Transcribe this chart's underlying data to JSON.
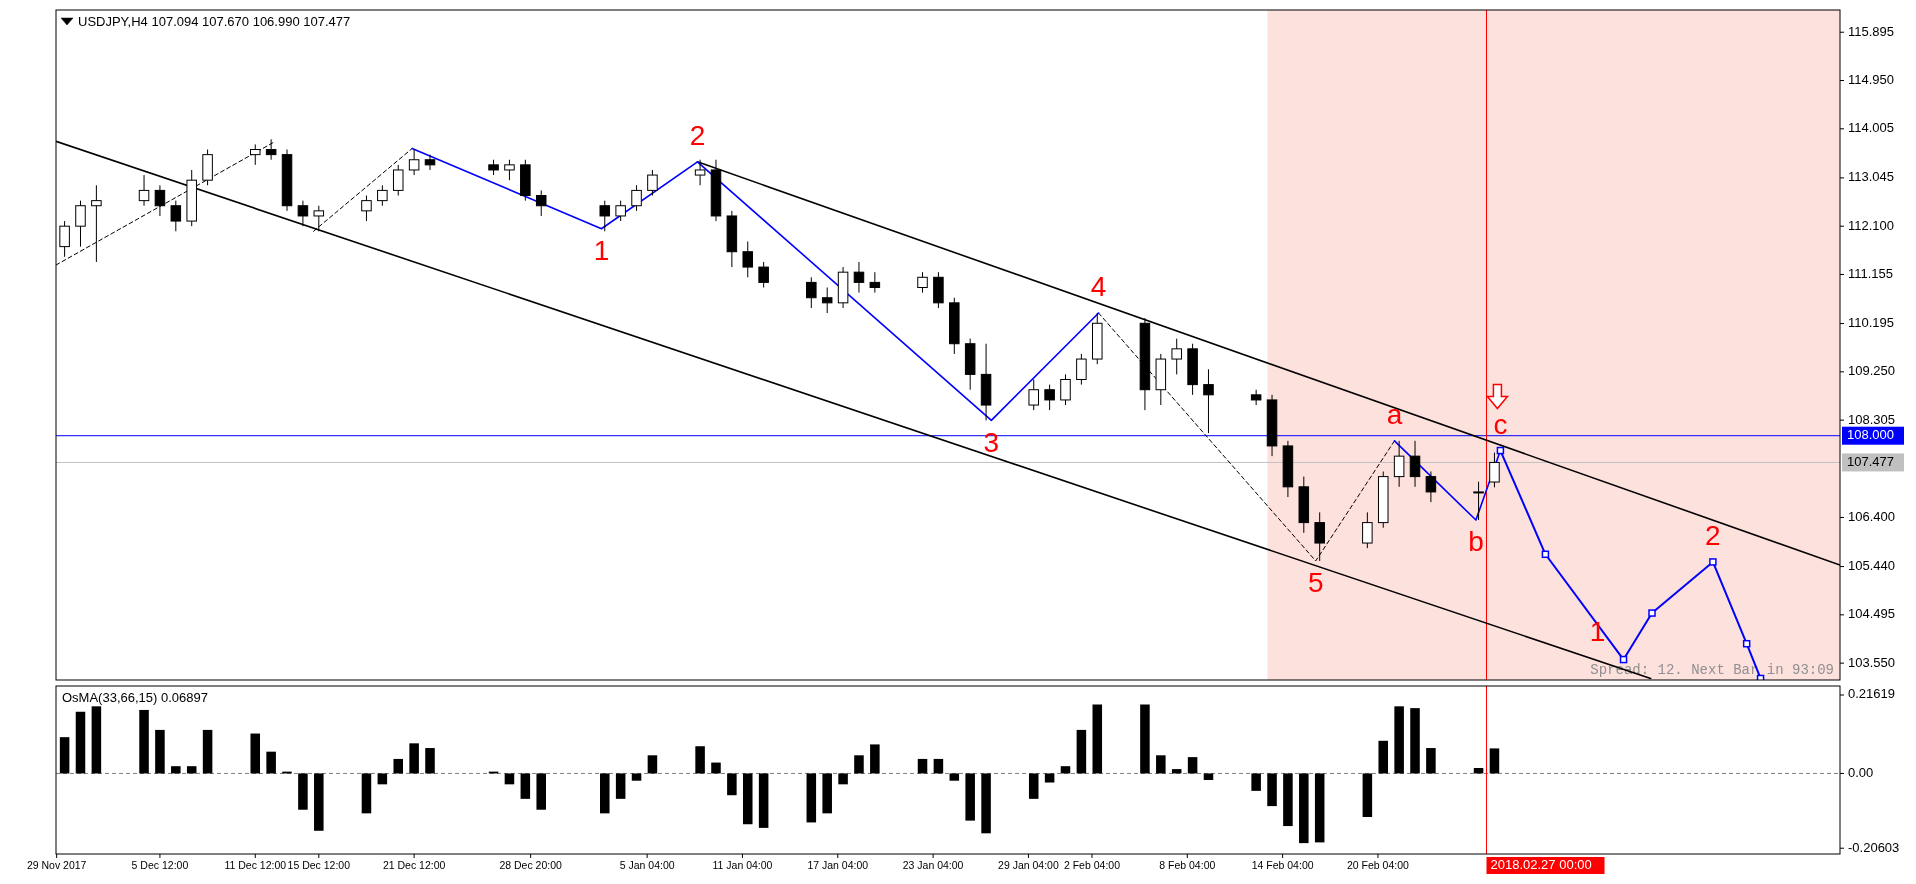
{
  "chart_data": [
    {
      "type": "candlestick",
      "title": "USDJPY,H4 107.094 107.670 106.990 107.477",
      "xlim": [
        "2017-11-28T23:00",
        "2018-03-21T06:00"
      ],
      "ylim": [
        103.22,
        116.33
      ],
      "yticks": [
        115.895,
        {
          "value": 114.95,
          "label": "114.950"
        },
        114.005,
        113.045,
        {
          "value": 112.1,
          "label": "112.100"
        },
        111.155,
        110.195,
        {
          "value": 109.25,
          "label": "109.250"
        },
        108.305,
        {
          "value": 106.4,
          "label": "106.400"
        },
        {
          "value": 105.44,
          "label": "105.440"
        },
        104.495,
        {
          "value": 103.55,
          "label": "103.550"
        }
      ],
      "tick_labels": "y",
      "series": [
        {
          "type": "line",
          "color": "#000000",
          "x": [
            "2017-11-28T23:00",
            "2018-03-09T08:00"
          ],
          "values": [
            113.76,
            103.25
          ]
        },
        {
          "type": "line",
          "color": "#000000",
          "x": [
            "2018-01-08T08:00",
            "2018-03-21T06:00"
          ],
          "values": [
            113.36,
            105.47
          ]
        },
        {
          "type": "line",
          "color": "#000000",
          "line_style": "dashed",
          "x": [
            "2017-11-28T23:00",
            "2017-12-12T17:00"
          ],
          "values": [
            111.34,
            113.75
          ]
        },
        {
          "type": "line",
          "color": "#000000",
          "line_style": "dashed",
          "x": [
            "2017-12-15T04:00",
            "2017-12-21T09:00"
          ],
          "values": [
            112.0,
            113.62
          ]
        },
        {
          "type": "line",
          "color": "#000000",
          "line_style": "dashed",
          "x": [
            "2018-02-02T14:00",
            "2018-02-16T06:00",
            "2018-02-21T05:00"
          ],
          "values": [
            110.4,
            105.55,
            107.9
          ]
        },
        {
          "type": "line",
          "color": "#0000ff",
          "x": [
            "2017-12-21T09:00",
            "2018-01-02T07:00",
            "2018-01-08T08:00",
            "2018-01-26T20:00",
            "2018-02-02T14:00"
          ],
          "values": [
            113.62,
            112.05,
            113.36,
            108.3,
            110.4
          ]
        },
        {
          "type": "line",
          "color": "#0000ff",
          "x": [
            "2018-02-21T05:00",
            "2018-02-26T08:00",
            "2018-02-27T21:00"
          ],
          "values": [
            107.9,
            106.35,
            107.71
          ]
        },
        {
          "type": "line",
          "color": "#0000ff",
          "marker": "square",
          "x": [
            "2018-02-27T21:00",
            "2018-03-02T17:00",
            "2018-03-07T15:00",
            "2018-03-09T10:00",
            "2018-03-13T06:00",
            "2018-03-15T09:00",
            "2018-03-16T06:00"
          ],
          "values": [
            107.71,
            105.68,
            103.62,
            104.53,
            105.53,
            103.93,
            103.25
          ]
        }
      ],
      "color": "#000000",
      "x": [
        "2017-11-29T12:00",
        "2017-11-30T12:00",
        "2017-12-01T12:00",
        "2017-12-04T12:00",
        "2017-12-05T12:00",
        "2017-12-06T12:00",
        "2017-12-07T12:00",
        "2017-12-08T12:00",
        "2017-12-11T12:00",
        "2017-12-12T12:00",
        "2017-12-13T12:00",
        "2017-12-14T12:00",
        "2017-12-15T12:00",
        "2017-12-18T12:00",
        "2017-12-19T12:00",
        "2017-12-20T12:00",
        "2017-12-21T12:00",
        "2017-12-22T12:00",
        "2017-12-26T12:00",
        "2017-12-27T12:00",
        "2017-12-28T12:00",
        "2017-12-29T12:00",
        "2018-01-02T12:00",
        "2018-01-03T12:00",
        "2018-01-04T12:00",
        "2018-01-05T12:00",
        "2018-01-08T12:00",
        "2018-01-09T12:00",
        "2018-01-10T12:00",
        "2018-01-11T12:00",
        "2018-01-12T12:00",
        "2018-01-15T12:00",
        "2018-01-16T12:00",
        "2018-01-17T12:00",
        "2018-01-18T12:00",
        "2018-01-19T12:00",
        "2018-01-22T12:00",
        "2018-01-23T12:00",
        "2018-01-24T12:00",
        "2018-01-25T12:00",
        "2018-01-26T12:00",
        "2018-01-29T12:00",
        "2018-01-30T12:00",
        "2018-01-31T12:00",
        "2018-02-01T12:00",
        "2018-02-02T12:00",
        "2018-02-05T12:00",
        "2018-02-06T12:00",
        "2018-02-07T12:00",
        "2018-02-08T12:00",
        "2018-02-09T12:00",
        "2018-02-12T12:00",
        "2018-02-13T12:00",
        "2018-02-14T12:00",
        "2018-02-15T12:00",
        "2018-02-16T12:00",
        "2018-02-19T12:00",
        "2018-02-20T12:00",
        "2018-02-21T12:00",
        "2018-02-22T12:00",
        "2018-02-23T12:00",
        "2018-02-26T12:00",
        "2018-02-27T12:00"
      ],
      "ohlc": [
        [
          111.7,
          112.2,
          111.5,
          112.1
        ],
        [
          112.1,
          112.6,
          111.7,
          112.5
        ],
        [
          112.5,
          112.9,
          111.4,
          112.6
        ],
        [
          112.6,
          113.1,
          112.5,
          112.8
        ],
        [
          112.8,
          112.9,
          112.3,
          112.5
        ],
        [
          112.5,
          112.6,
          112.0,
          112.2
        ],
        [
          112.2,
          113.2,
          112.1,
          113.0
        ],
        [
          113.0,
          113.6,
          112.9,
          113.5
        ],
        [
          113.5,
          113.7,
          113.3,
          113.6
        ],
        [
          113.6,
          113.8,
          113.4,
          113.5
        ],
        [
          113.5,
          113.6,
          112.4,
          112.5
        ],
        [
          112.5,
          112.6,
          112.1,
          112.3
        ],
        [
          112.3,
          112.5,
          112.0,
          112.4
        ],
        [
          112.4,
          112.7,
          112.2,
          112.6
        ],
        [
          112.6,
          112.9,
          112.5,
          112.8
        ],
        [
          112.8,
          113.3,
          112.7,
          113.2
        ],
        [
          113.2,
          113.6,
          113.1,
          113.4
        ],
        [
          113.4,
          113.5,
          113.2,
          113.3
        ],
        [
          113.3,
          113.4,
          113.1,
          113.2
        ],
        [
          113.2,
          113.4,
          113.0,
          113.3
        ],
        [
          113.3,
          113.4,
          112.6,
          112.7
        ],
        [
          112.7,
          112.8,
          112.3,
          112.5
        ],
        [
          112.5,
          112.6,
          112.0,
          112.3
        ],
        [
          112.3,
          112.6,
          112.2,
          112.5
        ],
        [
          112.5,
          112.9,
          112.4,
          112.8
        ],
        [
          112.8,
          113.2,
          112.7,
          113.1
        ],
        [
          113.1,
          113.4,
          112.9,
          113.2
        ],
        [
          113.2,
          113.4,
          112.2,
          112.3
        ],
        [
          112.3,
          112.4,
          111.3,
          111.6
        ],
        [
          111.6,
          111.8,
          111.1,
          111.3
        ],
        [
          111.3,
          111.4,
          110.9,
          111.0
        ],
        [
          111.0,
          111.1,
          110.5,
          110.7
        ],
        [
          110.7,
          110.9,
          110.4,
          110.6
        ],
        [
          110.6,
          111.3,
          110.5,
          111.2
        ],
        [
          111.2,
          111.4,
          110.8,
          111.0
        ],
        [
          111.0,
          111.2,
          110.8,
          110.9
        ],
        [
          110.9,
          111.2,
          110.8,
          111.1
        ],
        [
          111.1,
          111.2,
          110.5,
          110.6
        ],
        [
          110.6,
          110.7,
          109.6,
          109.8
        ],
        [
          109.8,
          109.9,
          108.9,
          109.2
        ],
        [
          109.2,
          109.8,
          108.3,
          108.6
        ],
        [
          108.6,
          109.1,
          108.5,
          108.9
        ],
        [
          108.9,
          109.0,
          108.5,
          108.7
        ],
        [
          108.7,
          109.2,
          108.6,
          109.1
        ],
        [
          109.1,
          109.6,
          109.0,
          109.5
        ],
        [
          109.5,
          110.4,
          109.4,
          110.2
        ],
        [
          110.2,
          110.3,
          108.5,
          108.9
        ],
        [
          108.9,
          109.6,
          108.6,
          109.5
        ],
        [
          109.5,
          109.9,
          109.2,
          109.7
        ],
        [
          109.7,
          109.8,
          108.8,
          109.0
        ],
        [
          109.0,
          109.3,
          108.05,
          108.8
        ],
        [
          108.8,
          108.9,
          108.6,
          108.7
        ],
        [
          108.7,
          108.8,
          107.6,
          107.8
        ],
        [
          107.8,
          107.9,
          106.8,
          107.0
        ],
        [
          107.0,
          107.2,
          106.1,
          106.3
        ],
        [
          106.3,
          106.5,
          105.55,
          105.9
        ],
        [
          105.9,
          106.5,
          105.8,
          106.3
        ],
        [
          106.3,
          107.3,
          106.2,
          107.2
        ],
        [
          107.2,
          107.9,
          107.0,
          107.6
        ],
        [
          107.6,
          107.9,
          107.0,
          107.2
        ],
        [
          107.2,
          107.3,
          106.7,
          106.9
        ],
        [
          106.9,
          107.1,
          106.35,
          106.9
        ],
        [
          107.094,
          107.67,
          106.99,
          107.477
        ]
      ],
      "ref_lines": [
        {
          "axis": "y",
          "value": 108,
          "label": "108.000",
          "color": "#0000ff"
        },
        {
          "axis": "y",
          "value": 107.477,
          "label": "107.477",
          "color": "#c0c0c0"
        },
        {
          "axis": "x",
          "value": "2018-02-27T00:00",
          "label": null,
          "color": "#ff0000"
        }
      ],
      "bands": [
        {
          "axis": "x",
          "from": "2018-02-13T05:00",
          "to": "2018-03-21T06:00",
          "color": "#fde1dd"
        }
      ],
      "annotations": [
        {
          "text": "1",
          "x": "2018-01-02T07:00",
          "y": 112.05
        },
        {
          "text": "2",
          "x": "2018-01-08T08:00",
          "y": 113.36
        },
        {
          "text": "3",
          "x": "2018-01-26T20:00",
          "y": 108.3
        },
        {
          "text": "4",
          "x": "2018-02-02T14:00",
          "y": 110.4
        },
        {
          "text": "5",
          "x": "2018-02-16T06:00",
          "y": 105.55
        },
        {
          "text": "a",
          "x": "2018-02-21T05:00",
          "y": 107.9
        },
        {
          "text": "b",
          "x": "2018-02-26T08:00",
          "y": 106.35
        },
        {
          "text": "c",
          "x": "2018-02-27T21:00",
          "y": 107.71
        },
        {
          "text": "1",
          "x": "2018-03-07T15:00",
          "y": 103.62
        },
        {
          "text": "2",
          "x": "2018-03-13T06:00",
          "y": 105.53
        },
        "Spread: 12. Next Bar in 93:09"
      ]
    },
    {
      "type": "bar",
      "title": "OsMA(33,66,15) 0.06897",
      "color": "#000000",
      "xlim": [
        "2017-11-28T23:00",
        "2018-03-21T06:00"
      ],
      "ylim": [
        -0.222,
        0.241
      ],
      "yticks": [
        0.21619,
        {
          "value": 0,
          "label": "0.00"
        },
        -0.20603
      ],
      "xticks": [
        {
          "value": "2017-11-29T00:00",
          "label": "29 Nov 2017"
        },
        {
          "value": "2017-12-05T12:00",
          "label": "5 Dec 12:00"
        },
        {
          "value": "2017-12-11T12:00",
          "label": "11 Dec 12:00"
        },
        {
          "value": "2017-12-15T12:00",
          "label": "15 Dec 12:00"
        },
        {
          "value": "2017-12-21T12:00",
          "label": "21 Dec 12:00"
        },
        {
          "value": "2017-12-28T20:00",
          "label": "28 Dec 20:00"
        },
        {
          "value": "2018-01-05T04:00",
          "label": "5 Jan 04:00"
        },
        {
          "value": "2018-01-11T04:00",
          "label": "11 Jan 04:00"
        },
        {
          "value": "2018-01-17T04:00",
          "label": "17 Jan 04:00"
        },
        {
          "value": "2018-01-23T04:00",
          "label": "23 Jan 04:00"
        },
        {
          "value": "2018-01-29T04:00",
          "label": "29 Jan 04:00"
        },
        {
          "value": "2018-02-02T04:00",
          "label": "2 Feb 04:00"
        },
        {
          "value": "2018-02-08T04:00",
          "label": "8 Feb 04:00"
        },
        {
          "value": "2018-02-14T04:00",
          "label": "14 Feb 04:00"
        },
        {
          "value": "2018-02-20T04:00",
          "label": "20 Feb 04:00"
        }
      ],
      "x": [
        "2017-11-29T12:00",
        "2017-11-30T12:00",
        "2017-12-01T12:00",
        "2017-12-04T12:00",
        "2017-12-05T12:00",
        "2017-12-06T12:00",
        "2017-12-07T12:00",
        "2017-12-08T12:00",
        "2017-12-11T12:00",
        "2017-12-12T12:00",
        "2017-12-13T12:00",
        "2017-12-14T12:00",
        "2017-12-15T12:00",
        "2017-12-18T12:00",
        "2017-12-19T12:00",
        "2017-12-20T12:00",
        "2017-12-21T12:00",
        "2017-12-22T12:00",
        "2017-12-26T12:00",
        "2017-12-27T12:00",
        "2017-12-28T12:00",
        "2017-12-29T12:00",
        "2018-01-02T12:00",
        "2018-01-03T12:00",
        "2018-01-04T12:00",
        "2018-01-05T12:00",
        "2018-01-08T12:00",
        "2018-01-09T12:00",
        "2018-01-10T12:00",
        "2018-01-11T12:00",
        "2018-01-12T12:00",
        "2018-01-15T12:00",
        "2018-01-16T12:00",
        "2018-01-17T12:00",
        "2018-01-18T12:00",
        "2018-01-19T12:00",
        "2018-01-22T12:00",
        "2018-01-23T12:00",
        "2018-01-24T12:00",
        "2018-01-25T12:00",
        "2018-01-26T12:00",
        "2018-01-29T12:00",
        "2018-01-30T12:00",
        "2018-01-31T12:00",
        "2018-02-01T12:00",
        "2018-02-02T12:00",
        "2018-02-05T12:00",
        "2018-02-06T12:00",
        "2018-02-07T12:00",
        "2018-02-08T12:00",
        "2018-02-09T12:00",
        "2018-02-12T12:00",
        "2018-02-13T12:00",
        "2018-02-14T12:00",
        "2018-02-15T12:00",
        "2018-02-16T12:00",
        "2018-02-19T12:00",
        "2018-02-20T12:00",
        "2018-02-21T12:00",
        "2018-02-22T12:00",
        "2018-02-23T12:00",
        "2018-02-26T12:00",
        "2018-02-27T12:00"
      ],
      "values": [
        0.1,
        0.17,
        0.185,
        0.175,
        0.12,
        0.02,
        0.02,
        0.12,
        0.11,
        0.06,
        0.005,
        -0.1,
        -0.158,
        -0.11,
        -0.03,
        0.04,
        0.083,
        0.07,
        0.005,
        -0.03,
        -0.07,
        -0.1,
        -0.11,
        -0.07,
        -0.02,
        0.05,
        0.075,
        0.03,
        -0.06,
        -0.14,
        -0.15,
        -0.135,
        -0.11,
        -0.03,
        0.05,
        0.08,
        0.04,
        0.04,
        -0.02,
        -0.13,
        -0.165,
        -0.07,
        -0.025,
        0.02,
        0.12,
        0.19,
        0.19,
        0.05,
        0.012,
        0.045,
        -0.018,
        -0.048,
        -0.09,
        -0.145,
        -0.192,
        -0.19,
        -0.12,
        0.09,
        0.185,
        0.18,
        0.07,
        0.015,
        0.06897
      ],
      "ref_lines": [
        {
          "axis": "y",
          "value": 0,
          "color": "#808080",
          "line_style": "dashed"
        },
        {
          "axis": "x",
          "value": "2018-02-27T00:00",
          "label": "2018.02.27 00:00",
          "color": "#ff0000"
        }
      ]
    }
  ]
}
